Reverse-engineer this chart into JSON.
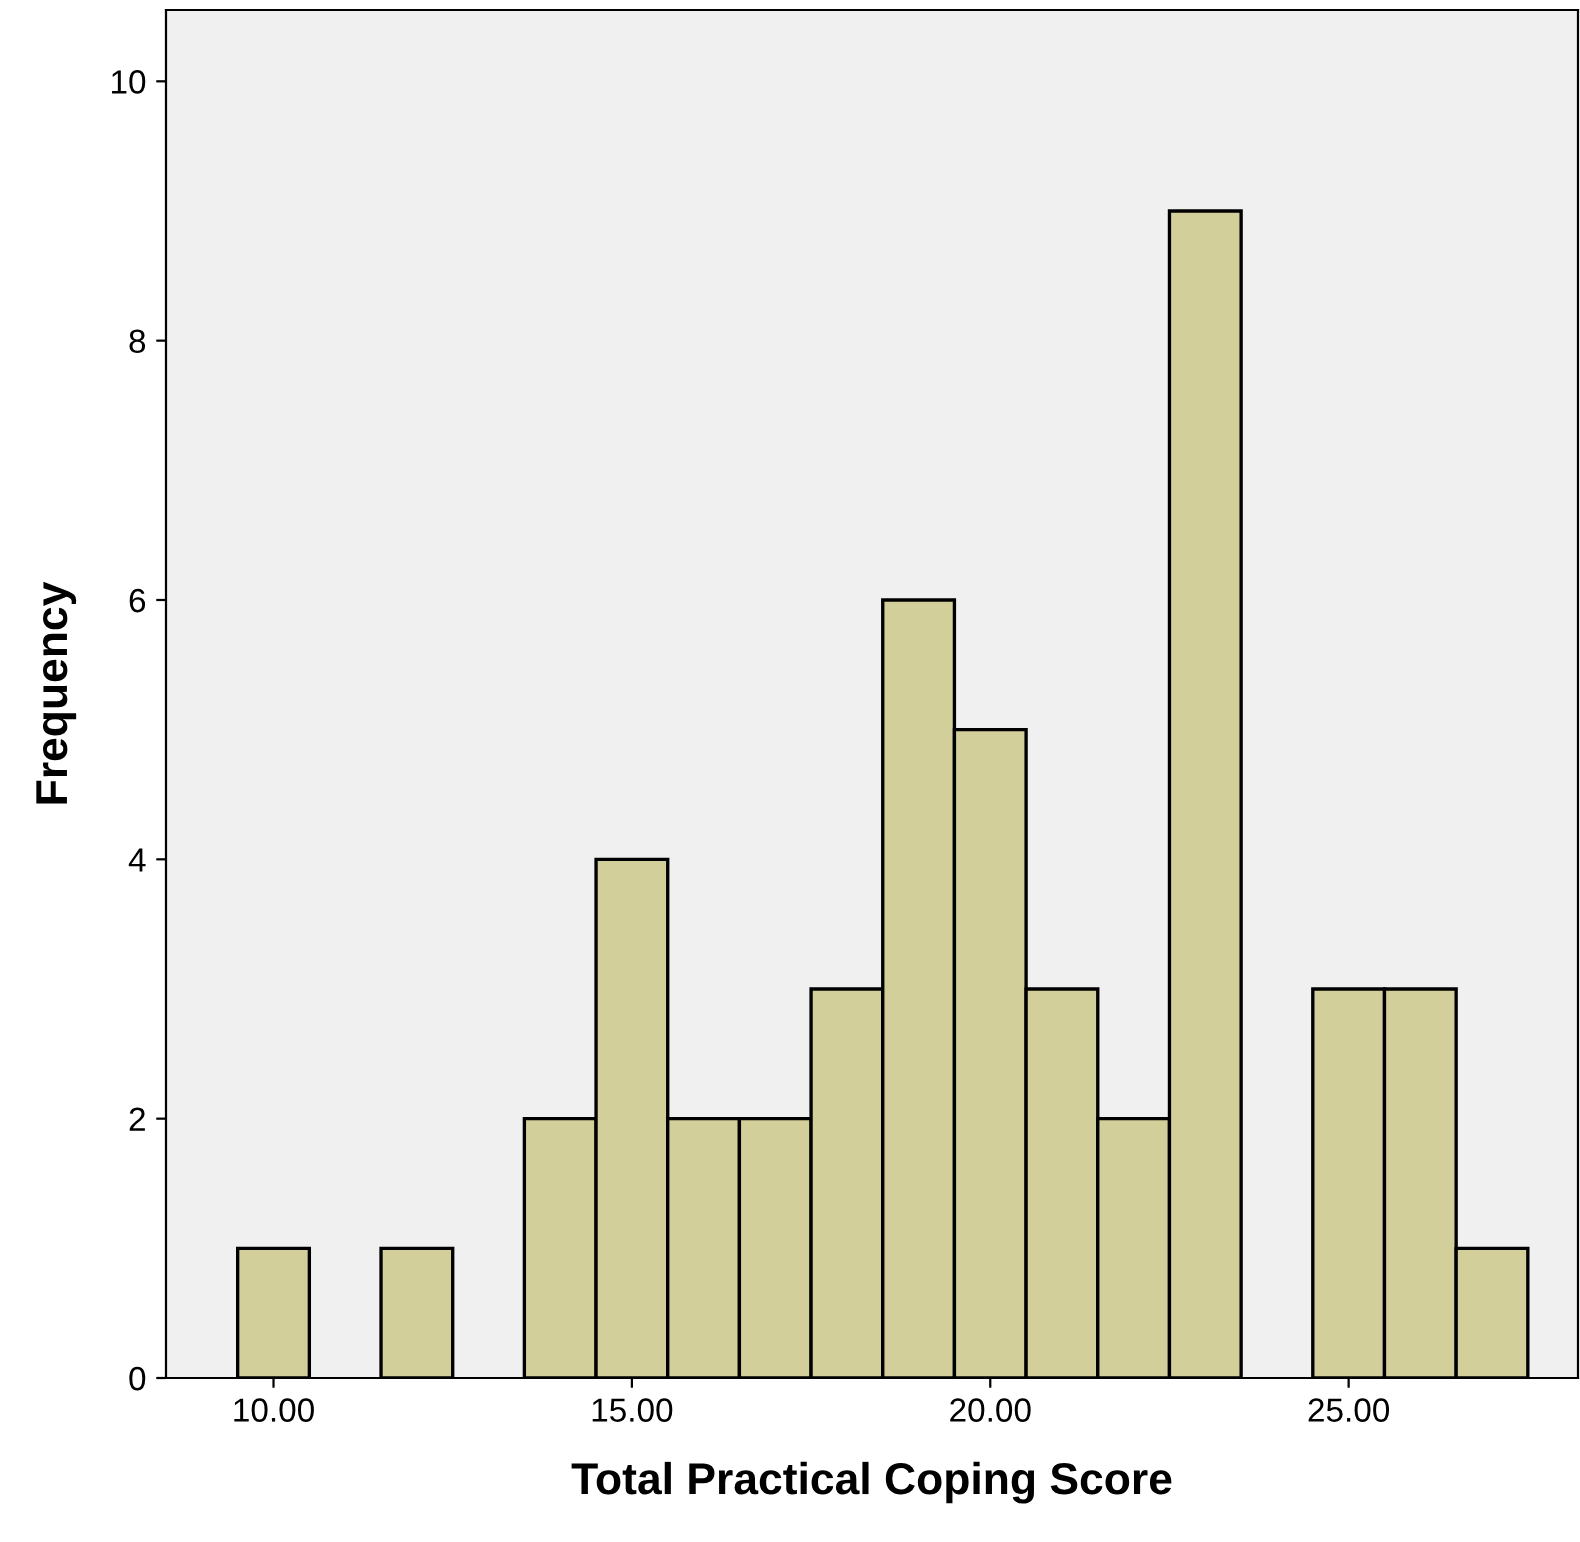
{
  "chart_data": {
    "type": "histogram",
    "xlabel": "Total Practical Coping Score",
    "ylabel": "Frequency",
    "bins": [
      9.5,
      10.5,
      11.5,
      12.5,
      13.5,
      14.5,
      15.5,
      16.5,
      17.5,
      18.5,
      19.5,
      20.5,
      21.5,
      22.5,
      23.5,
      24.5,
      25.5,
      26.5,
      27.5
    ],
    "values": [
      1,
      0,
      1,
      0,
      2,
      4,
      2,
      2,
      3,
      6,
      5,
      3,
      2,
      9,
      0,
      3,
      3,
      1
    ],
    "color": "#d3cf9a",
    "xlim": [
      8.5,
      28.2
    ],
    "ylim": [
      0,
      10.55
    ],
    "xticks": [
      {
        "value": 10,
        "label": "10.00"
      },
      {
        "value": 15,
        "label": "15.00"
      },
      {
        "value": 20,
        "label": "20.00"
      },
      {
        "value": 25,
        "label": "25.00"
      }
    ],
    "yticks": [
      0,
      2,
      4,
      6,
      8,
      10
    ],
    "grid": false
  }
}
